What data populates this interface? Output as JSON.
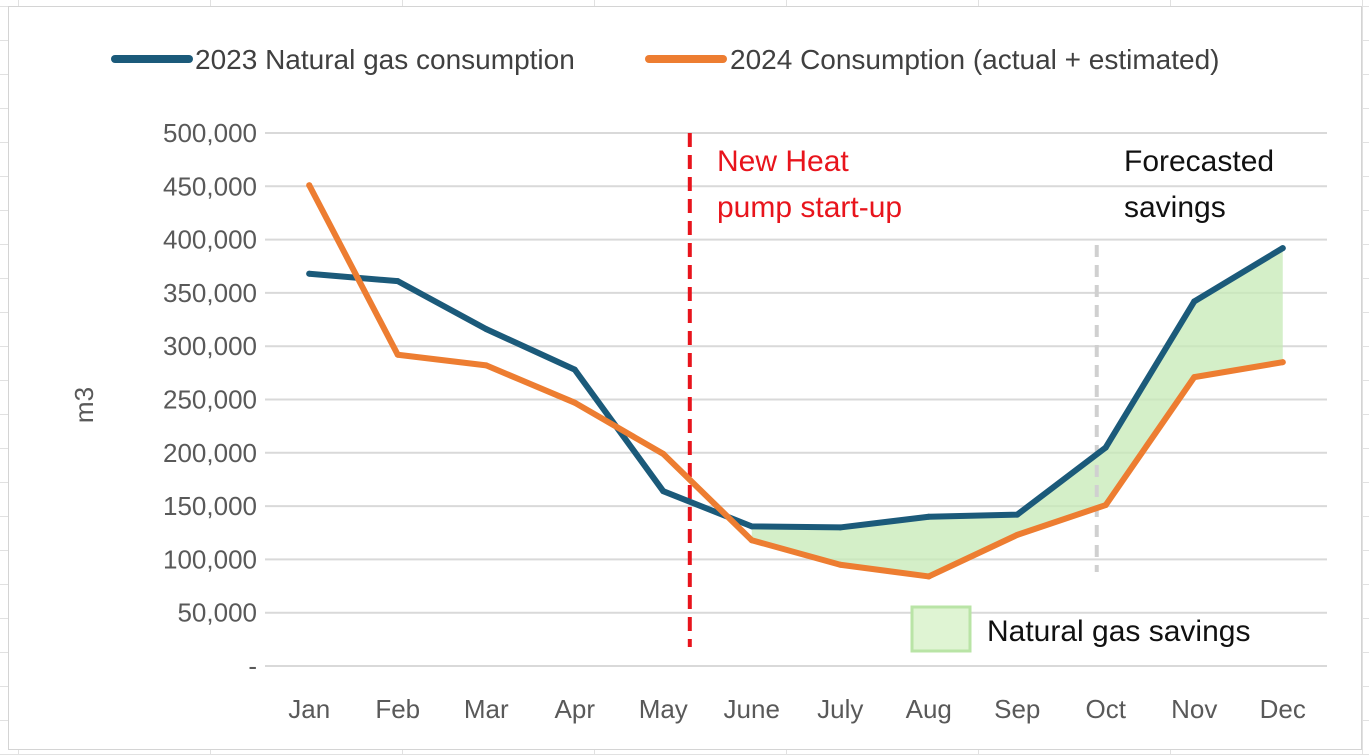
{
  "chart_data": {
    "type": "line",
    "title": "",
    "xlabel": "",
    "ylabel": "m3",
    "categories": [
      "Jan",
      "Feb",
      "Mar",
      "Apr",
      "May",
      "June",
      "July",
      "Aug",
      "Sep",
      "Oct",
      "Nov",
      "Dec"
    ],
    "ylim": [
      0,
      500000
    ],
    "yticks": [
      {
        "value": 0,
        "label": "-"
      },
      {
        "value": 50000,
        "label": "50,000"
      },
      {
        "value": 100000,
        "label": "100,000"
      },
      {
        "value": 150000,
        "label": "150,000"
      },
      {
        "value": 200000,
        "label": "200,000"
      },
      {
        "value": 250000,
        "label": "250,000"
      },
      {
        "value": 300000,
        "label": "300,000"
      },
      {
        "value": 350000,
        "label": "350,000"
      },
      {
        "value": 400000,
        "label": "400,000"
      },
      {
        "value": 450000,
        "label": "450,000"
      },
      {
        "value": 500000,
        "label": "500,000"
      }
    ],
    "grid": true,
    "legend_position": "top",
    "series": [
      {
        "name": "2023 Natural gas consumption",
        "color": "#1b5a7a",
        "values": [
          368000,
          361000,
          316000,
          278000,
          164000,
          131000,
          130000,
          140000,
          142000,
          205000,
          342000,
          392000
        ]
      },
      {
        "name": "2024 Consumption (actual + estimated)",
        "color": "#ed7d31",
        "values": [
          451000,
          292000,
          282000,
          247000,
          199000,
          118000,
          95000,
          84000,
          123000,
          151000,
          271000,
          285000
        ]
      }
    ],
    "savings_band": {
      "label": "Natural gas savings",
      "color": "#c5eab5",
      "from_category": "June",
      "to_category": "Dec"
    },
    "annotations": [
      {
        "text_lines": [
          "New Heat",
          "pump start-up"
        ],
        "color": "#e8141c",
        "at_category": "May",
        "line_style": "dashed"
      },
      {
        "text_lines": [
          "Forecasted",
          "savings"
        ],
        "color": "#000000",
        "at_category": "Oct",
        "line_style": "dashed-grey"
      }
    ]
  }
}
